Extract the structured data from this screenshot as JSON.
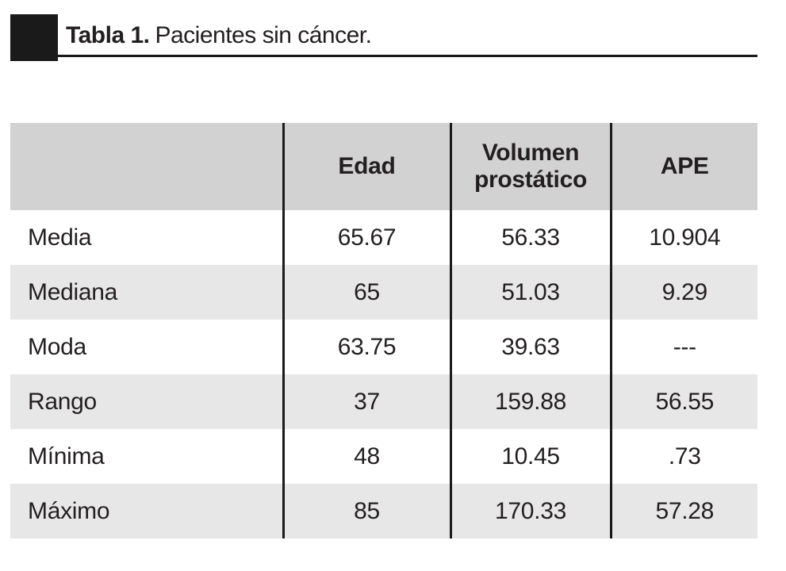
{
  "title": {
    "bold": "Tabla 1.",
    "rest": "Pacientes sin cáncer."
  },
  "colors": {
    "header_bg": "#d2d2d2",
    "stripe_bg": "#e7e7e7",
    "rule_and_text": "#1a1a1a"
  },
  "table": {
    "columns": [
      "",
      "Edad",
      "Volumen prostático",
      "APE"
    ],
    "rows": [
      [
        "Media",
        "65.67",
        "56.33",
        "10.904"
      ],
      [
        "Mediana",
        "65",
        "51.03",
        "9.29"
      ],
      [
        "Moda",
        "63.75",
        "39.63",
        "---"
      ],
      [
        "Rango",
        "37",
        "159.88",
        "56.55"
      ],
      [
        "Mínima",
        "48",
        "10.45",
        ".73"
      ],
      [
        "Máximo",
        "85",
        "170.33",
        "57.28"
      ]
    ]
  }
}
